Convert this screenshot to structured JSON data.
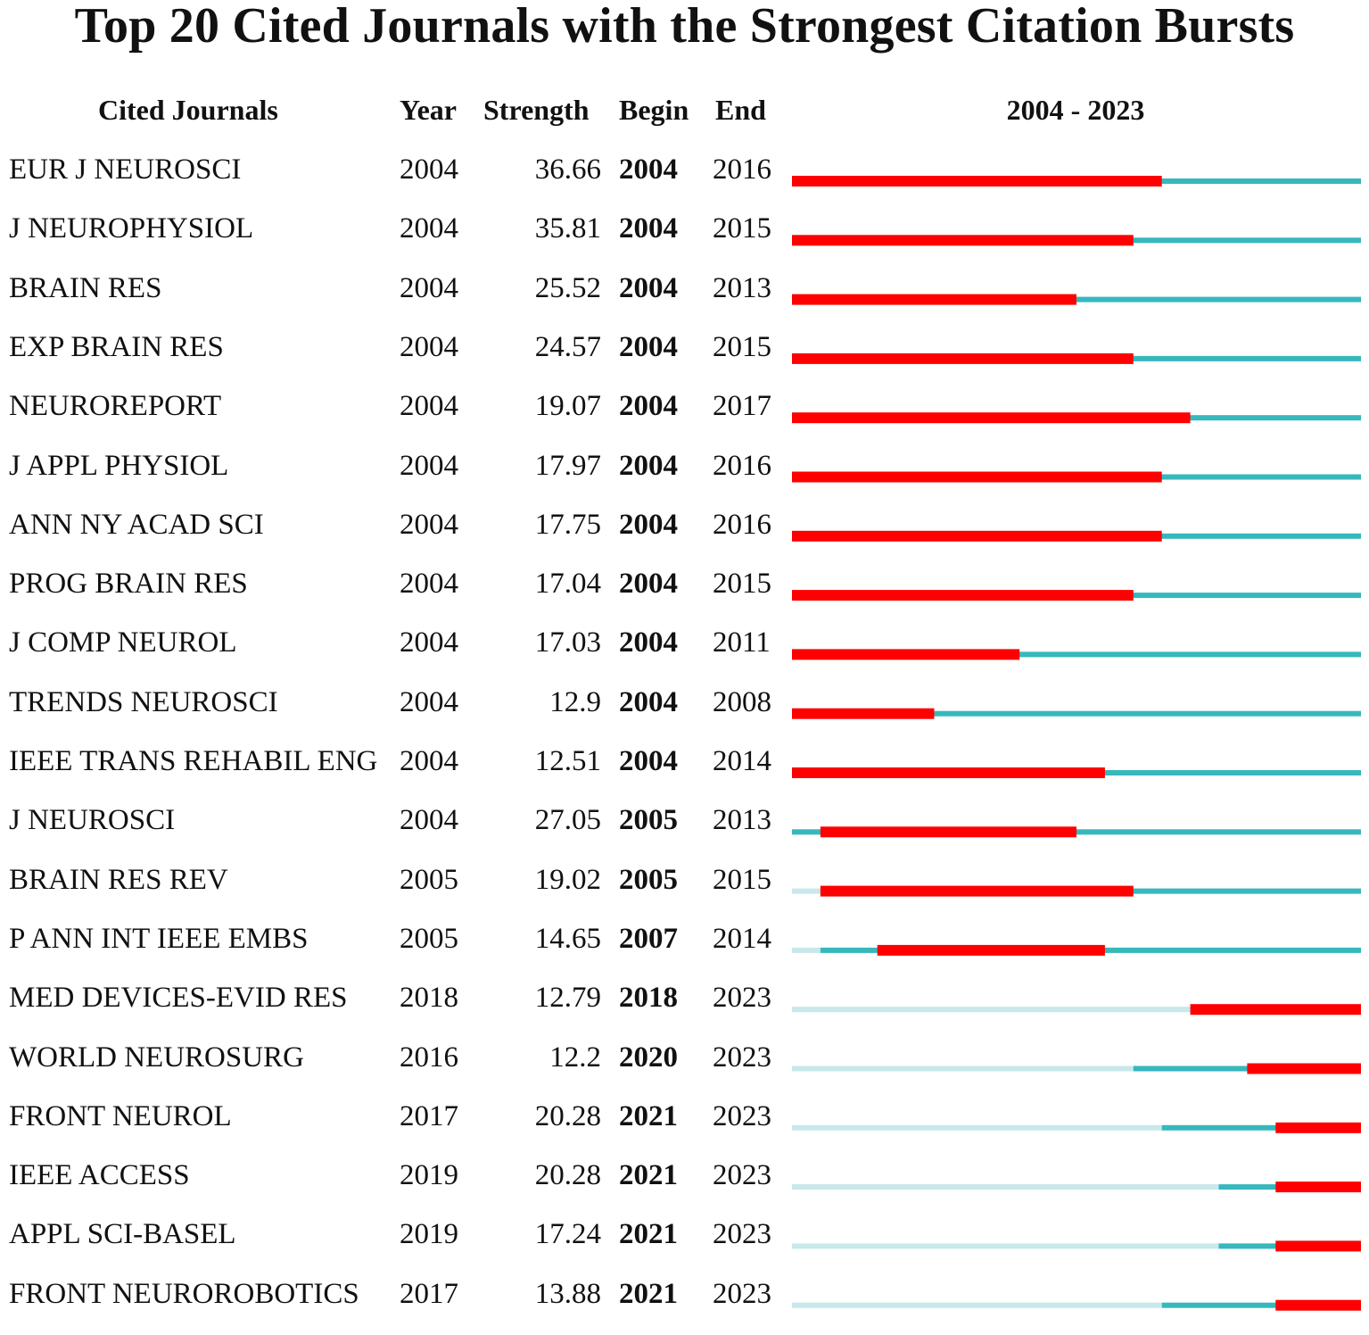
{
  "title": "Top 20 Cited Journals with the Strongest Citation Bursts",
  "headers": {
    "journal": "Cited Journals",
    "year": "Year",
    "strength": "Strength",
    "begin": "Begin",
    "end": "End",
    "range": "2004 - 2023"
  },
  "colors": {
    "burst": "#ff0000",
    "active": "#36b8bd",
    "inactive": "#c8e8ea"
  },
  "chart_data": {
    "type": "table",
    "timeline": {
      "start": 2004,
      "end": 2023
    },
    "rows": [
      {
        "journal": "EUR J NEUROSCI",
        "year": 2004,
        "strength": "36.66",
        "begin": 2004,
        "end": 2016
      },
      {
        "journal": "J NEUROPHYSIOL",
        "year": 2004,
        "strength": "35.81",
        "begin": 2004,
        "end": 2015
      },
      {
        "journal": "BRAIN RES",
        "year": 2004,
        "strength": "25.52",
        "begin": 2004,
        "end": 2013
      },
      {
        "journal": "EXP BRAIN RES",
        "year": 2004,
        "strength": "24.57",
        "begin": 2004,
        "end": 2015
      },
      {
        "journal": "NEUROREPORT",
        "year": 2004,
        "strength": "19.07",
        "begin": 2004,
        "end": 2017
      },
      {
        "journal": "J APPL PHYSIOL",
        "year": 2004,
        "strength": "17.97",
        "begin": 2004,
        "end": 2016
      },
      {
        "journal": "ANN NY ACAD SCI",
        "year": 2004,
        "strength": "17.75",
        "begin": 2004,
        "end": 2016
      },
      {
        "journal": "PROG BRAIN RES",
        "year": 2004,
        "strength": "17.04",
        "begin": 2004,
        "end": 2015
      },
      {
        "journal": "J COMP NEUROL",
        "year": 2004,
        "strength": "17.03",
        "begin": 2004,
        "end": 2011
      },
      {
        "journal": "TRENDS NEUROSCI",
        "year": 2004,
        "strength": "12.9",
        "begin": 2004,
        "end": 2008
      },
      {
        "journal": "IEEE TRANS REHABIL ENG",
        "year": 2004,
        "strength": "12.51",
        "begin": 2004,
        "end": 2014
      },
      {
        "journal": "J NEUROSCI",
        "year": 2004,
        "strength": "27.05",
        "begin": 2005,
        "end": 2013
      },
      {
        "journal": "BRAIN RES REV",
        "year": 2005,
        "strength": "19.02",
        "begin": 2005,
        "end": 2015
      },
      {
        "journal": "P ANN INT IEEE EMBS",
        "year": 2005,
        "strength": "14.65",
        "begin": 2007,
        "end": 2014
      },
      {
        "journal": "MED DEVICES-EVID RES",
        "year": 2018,
        "strength": "12.79",
        "begin": 2018,
        "end": 2023
      },
      {
        "journal": "WORLD NEUROSURG",
        "year": 2016,
        "strength": "12.2",
        "begin": 2020,
        "end": 2023
      },
      {
        "journal": "FRONT NEUROL",
        "year": 2017,
        "strength": "20.28",
        "begin": 2021,
        "end": 2023
      },
      {
        "journal": "IEEE ACCESS",
        "year": 2019,
        "strength": "20.28",
        "begin": 2021,
        "end": 2023
      },
      {
        "journal": "APPL SCI-BASEL",
        "year": 2019,
        "strength": "17.24",
        "begin": 2021,
        "end": 2023
      },
      {
        "journal": "FRONT NEUROROBOTICS",
        "year": 2017,
        "strength": "13.88",
        "begin": 2021,
        "end": 2023
      }
    ]
  }
}
